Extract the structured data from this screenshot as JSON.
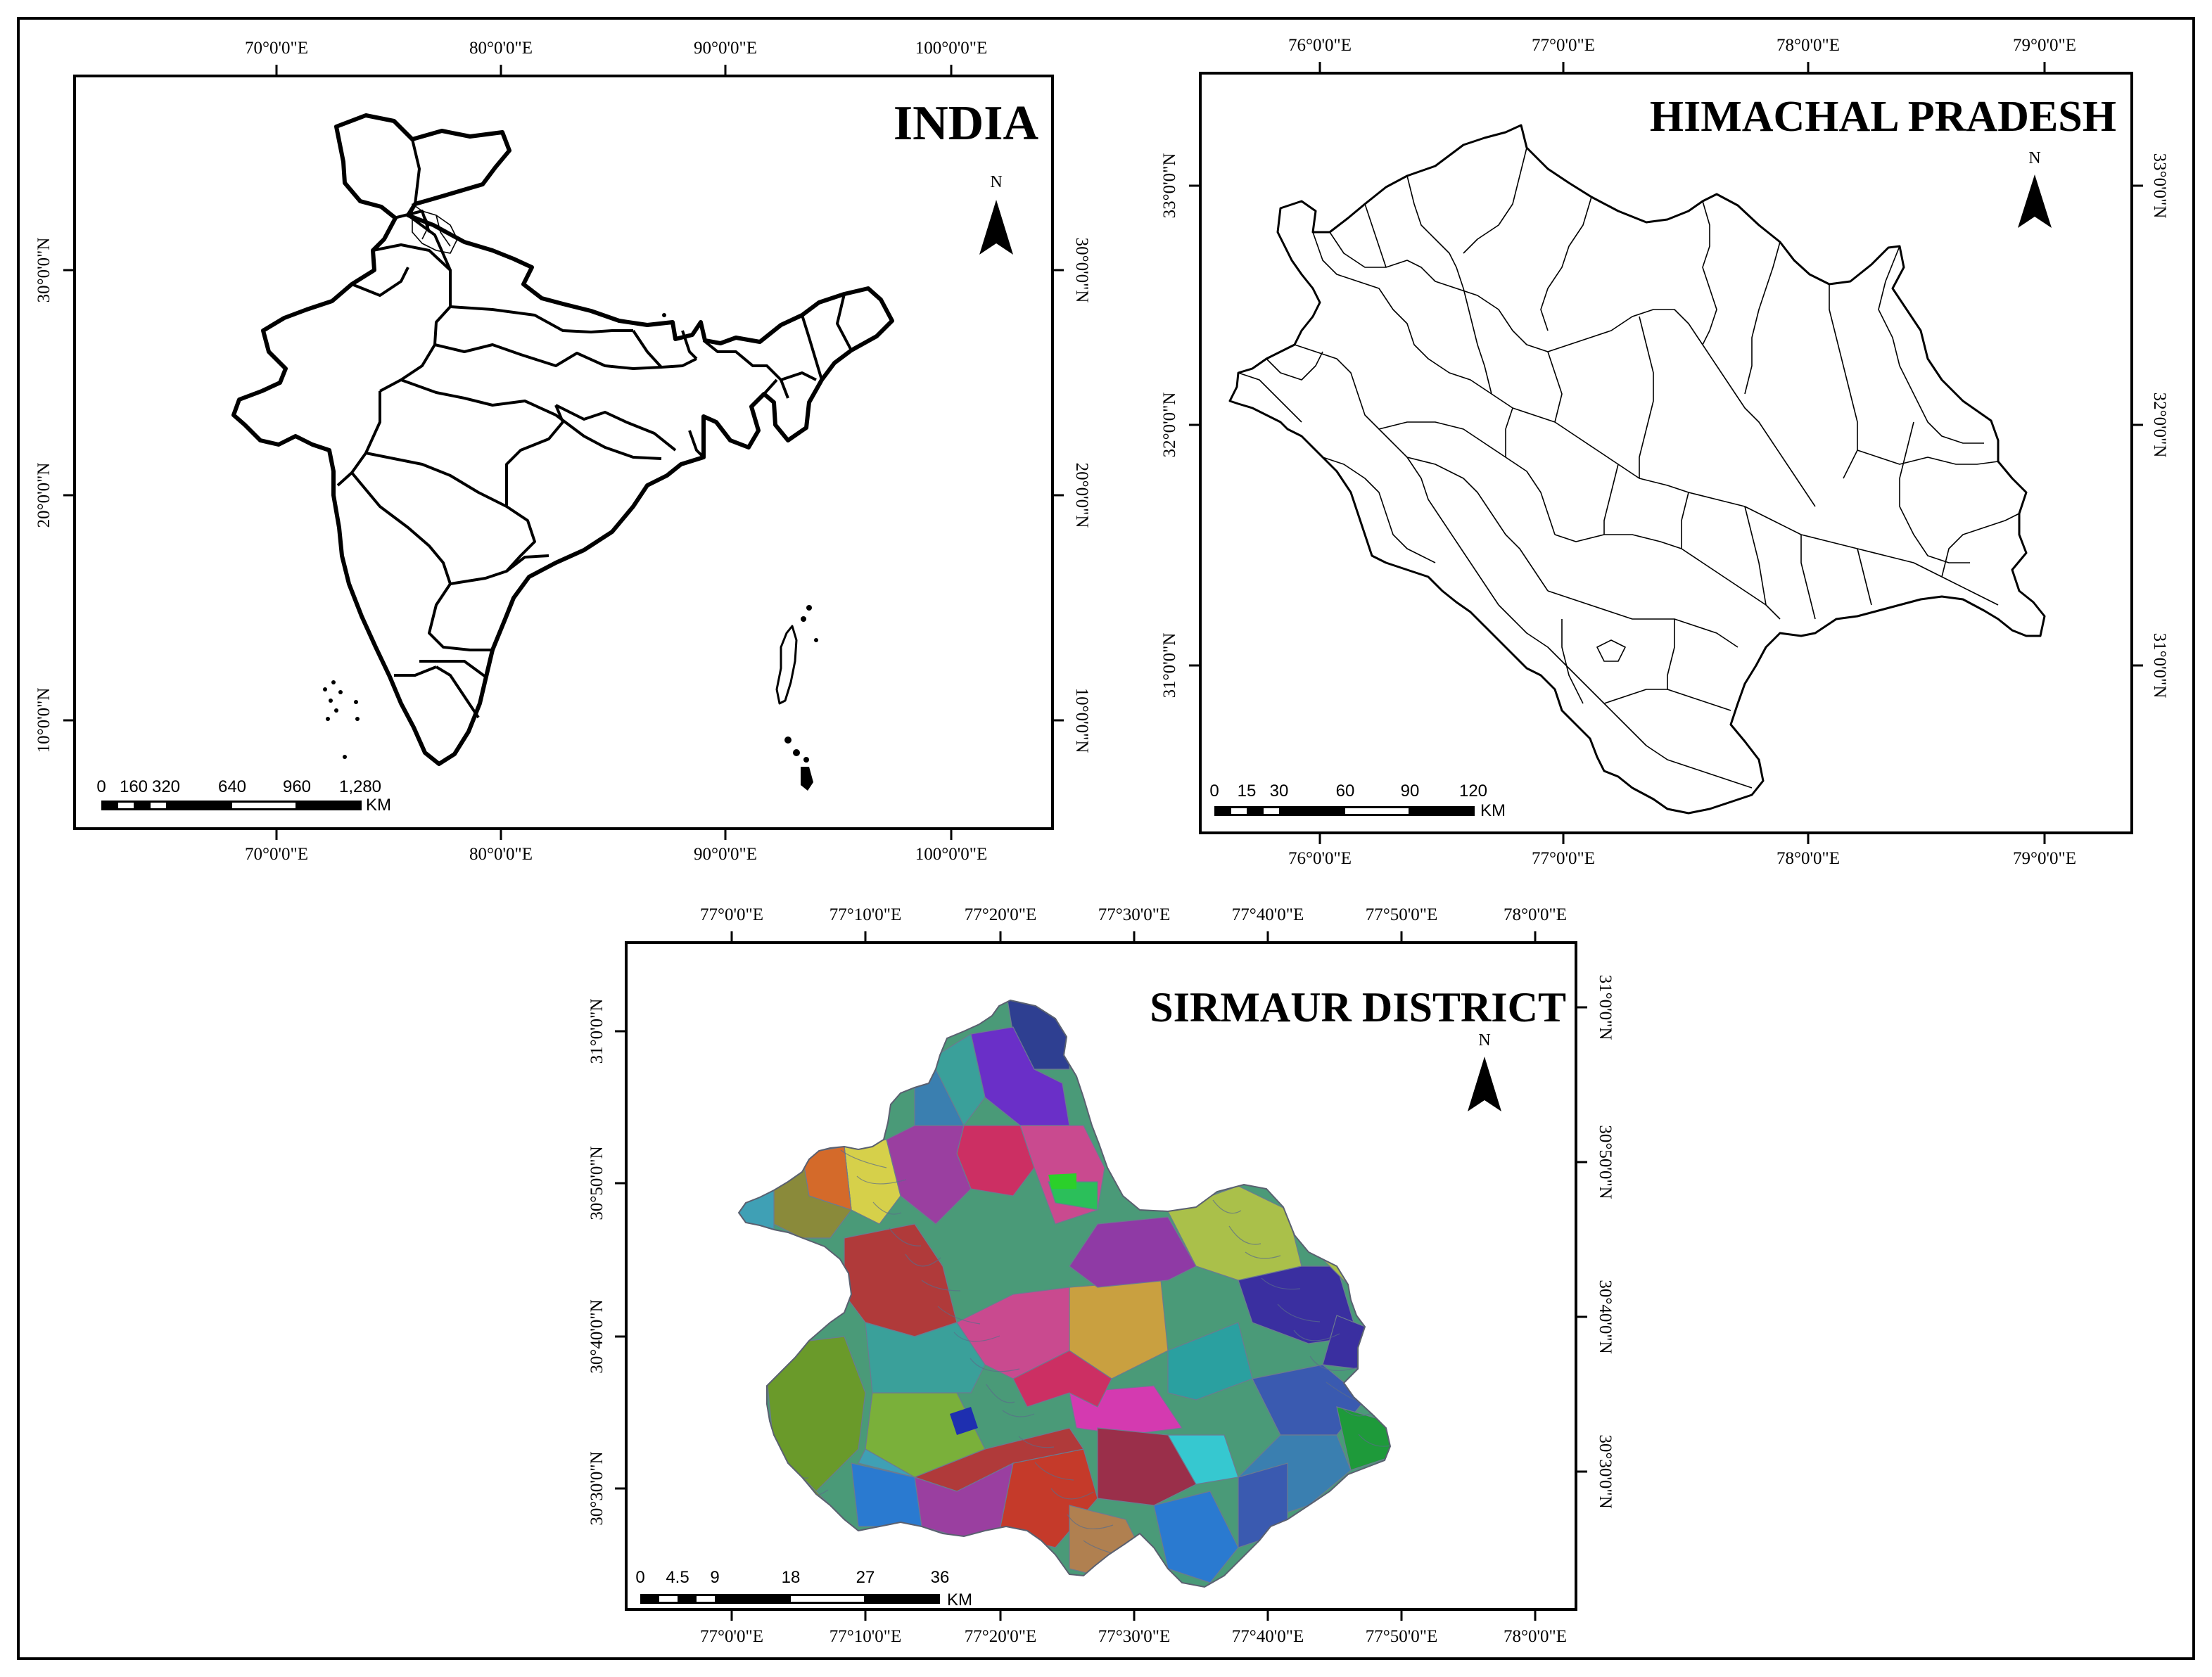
{
  "maps": [
    {
      "id": "india",
      "title": "INDIA",
      "north_label": "N",
      "x_ticks": [
        "70°0'0\"E",
        "80°0'0\"E",
        "90°0'0\"E",
        "100°0'0\"E"
      ],
      "y_ticks": [
        "30°0'0\"N",
        "20°0'0\"N",
        "10°0'0\"N"
      ],
      "scalebar": {
        "labels": [
          "0",
          "160",
          "320",
          "640",
          "960",
          "1,280"
        ],
        "unit": "KM"
      }
    },
    {
      "id": "himachal",
      "title": "HIMACHAL PRADESH",
      "north_label": "N",
      "x_ticks": [
        "76°0'0\"E",
        "77°0'0\"E",
        "78°0'0\"E",
        "79°0'0\"E"
      ],
      "y_ticks": [
        "33°0'0\"N",
        "32°0'0\"N",
        "31°0'0\"N"
      ],
      "scalebar": {
        "labels": [
          "0",
          "15",
          "30",
          "60",
          "90",
          "120"
        ],
        "unit": "KM"
      }
    },
    {
      "id": "sirmaur",
      "title": "SIRMAUR DISTRICT",
      "north_label": "N",
      "x_ticks": [
        "77°0'0\"E",
        "77°10'0\"E",
        "77°20'0\"E",
        "77°30'0\"E",
        "77°40'0\"E",
        "77°50'0\"E",
        "78°0'0\"E"
      ],
      "y_ticks": [
        "31°0'0\"N",
        "30°50'0\"N",
        "30°40'0\"N",
        "30°30'0\"N"
      ],
      "scalebar": {
        "labels": [
          "0",
          "4.5",
          "9",
          "18",
          "27",
          "36"
        ],
        "unit": "KM"
      }
    }
  ],
  "colors": {
    "sirmaur_palette": [
      "#2e3f91",
      "#6a2fc8",
      "#3aa09a",
      "#cc2f63",
      "#c94a8f",
      "#d6d04a",
      "#9a3fa0",
      "#3a7fb0",
      "#8a8a3a",
      "#d46a2a",
      "#3fa0b5",
      "#2bbf5a",
      "#b03a3a",
      "#6a9a2a",
      "#c9a040",
      "#aac04a",
      "#3a2fa0",
      "#d43ab0",
      "#2aa0a0",
      "#3a5ab0",
      "#1e9a3a",
      "#c53a2a",
      "#2a7ad0",
      "#8f3aa5",
      "#b08050",
      "#7ab03a",
      "#36c8d0",
      "#9a2f4a"
    ]
  }
}
